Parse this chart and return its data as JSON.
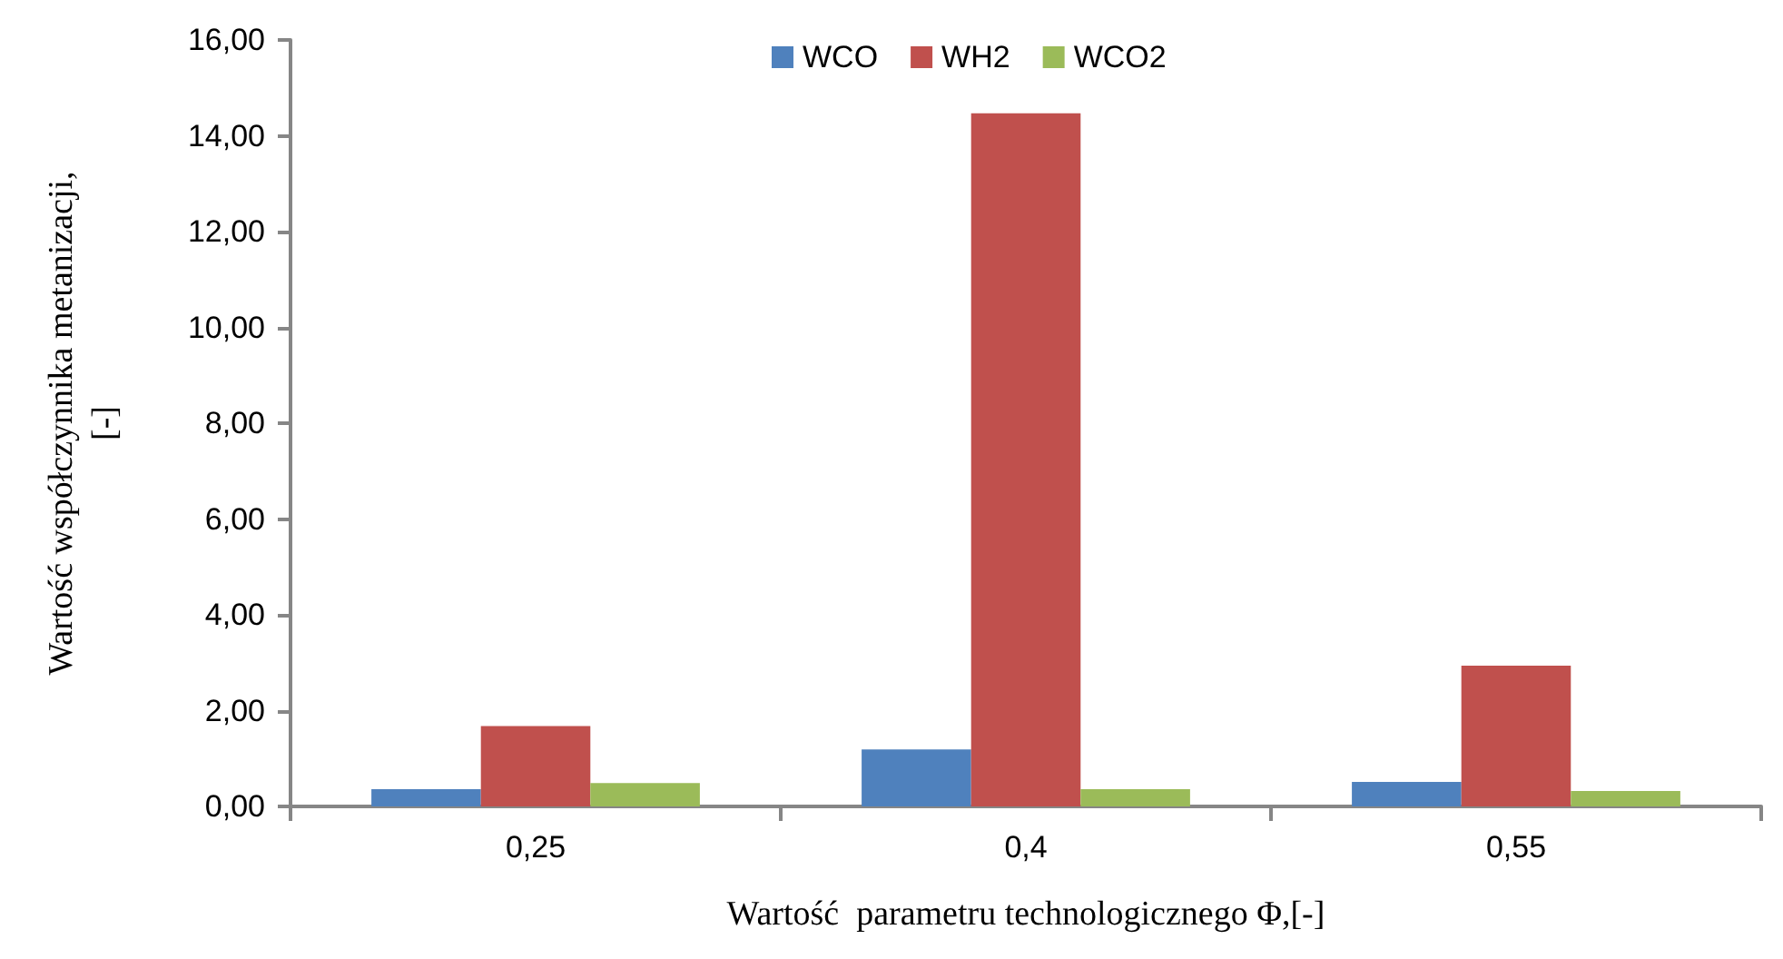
{
  "chart_data": {
    "type": "bar",
    "xlabel": "Wartość  parametru technologicznego Φ,[-]",
    "ylabel": "Wartość współczynnika metanizacji,\n[-]",
    "categories": [
      "0,25",
      "0,4",
      "0,55"
    ],
    "series": [
      {
        "name": "WCO",
        "color": "#4f81bd",
        "values": [
          0.36,
          1.19,
          0.51
        ]
      },
      {
        "name": "WH2",
        "color": "#c0504d",
        "values": [
          1.68,
          14.47,
          2.94
        ]
      },
      {
        "name": "WCO2",
        "color": "#9bbb59",
        "values": [
          0.49,
          0.36,
          0.32
        ]
      }
    ],
    "ylim": [
      0,
      16
    ],
    "yticks": [
      {
        "value": 0,
        "label": "0,00"
      },
      {
        "value": 2,
        "label": "2,00"
      },
      {
        "value": 4,
        "label": "4,00"
      },
      {
        "value": 6,
        "label": "6,00"
      },
      {
        "value": 8,
        "label": "8,00"
      },
      {
        "value": 10,
        "label": "10,00"
      },
      {
        "value": 12,
        "label": "12,00"
      },
      {
        "value": 14,
        "label": "14,00"
      },
      {
        "value": 16,
        "label": "16,00"
      }
    ],
    "grid": false,
    "legend": "top"
  }
}
